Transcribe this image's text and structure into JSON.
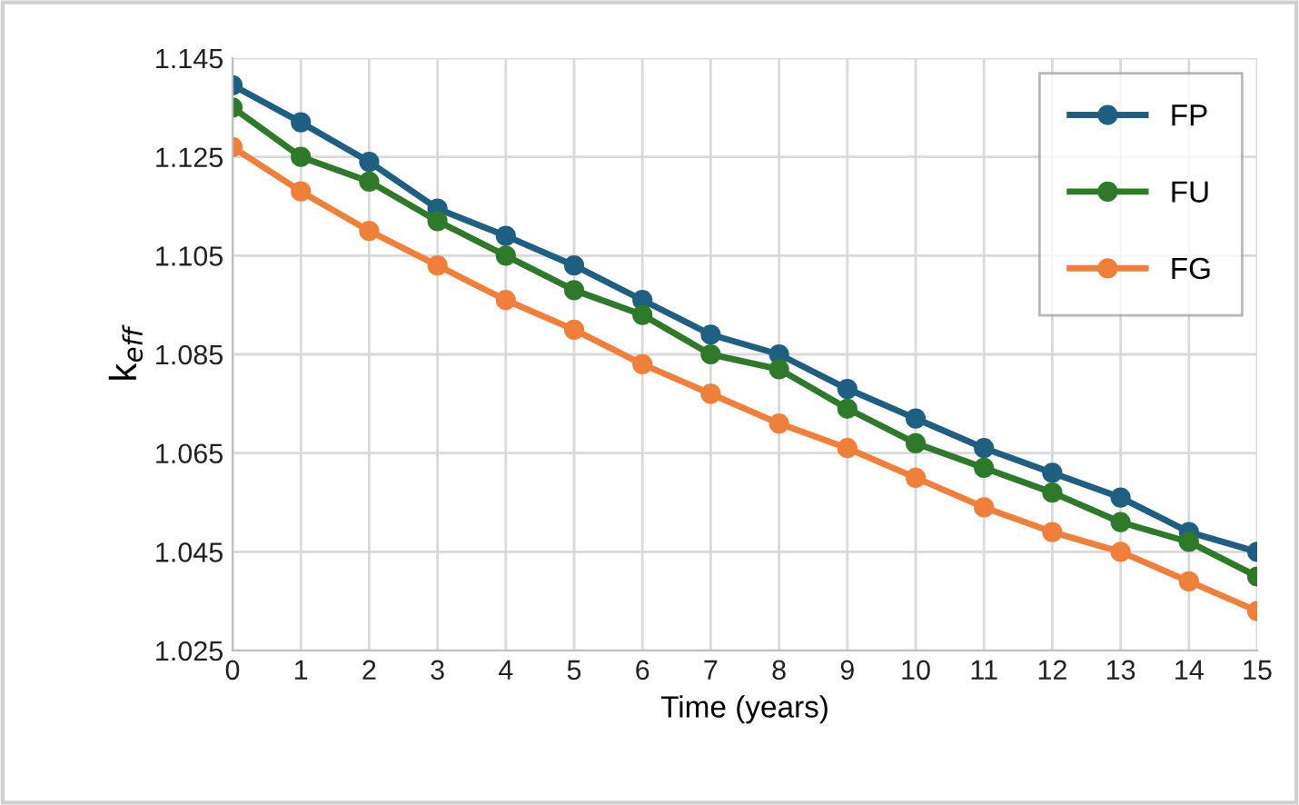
{
  "chart_data": {
    "type": "line",
    "xlabel": "Time (years)",
    "ylabel": "k$_{eff}$",
    "x": [
      0,
      1,
      2,
      3,
      4,
      5,
      6,
      7,
      8,
      9,
      10,
      11,
      12,
      13,
      14,
      15
    ],
    "series": [
      {
        "name": "FP",
        "color": "#1f5f82",
        "values": [
          1.1395,
          1.132,
          1.124,
          1.1145,
          1.109,
          1.103,
          1.096,
          1.089,
          1.085,
          1.078,
          1.072,
          1.066,
          1.061,
          1.056,
          1.049,
          1.045
        ]
      },
      {
        "name": "FU",
        "color": "#2e7a2a",
        "values": [
          1.135,
          1.125,
          1.12,
          1.112,
          1.105,
          1.098,
          1.093,
          1.085,
          1.082,
          1.074,
          1.067,
          1.062,
          1.057,
          1.051,
          1.047,
          1.04
        ]
      },
      {
        "name": "FG",
        "color": "#f07f3c",
        "values": [
          1.127,
          1.118,
          1.11,
          1.103,
          1.096,
          1.09,
          1.083,
          1.077,
          1.071,
          1.066,
          1.06,
          1.054,
          1.049,
          1.045,
          1.039,
          1.033
        ]
      }
    ],
    "xlim": [
      0,
      15
    ],
    "xticks": [
      0,
      1,
      2,
      3,
      4,
      5,
      6,
      7,
      8,
      9,
      10,
      11,
      12,
      13,
      14,
      15
    ],
    "ylim": [
      1.025,
      1.145
    ],
    "yticks": [
      {
        "value": 1.025,
        "label": "1.025"
      },
      {
        "value": 1.045,
        "label": "1.045"
      },
      {
        "value": 1.065,
        "label": "1.065"
      },
      {
        "value": 1.085,
        "label": "1.085"
      },
      {
        "value": 1.105,
        "label": "1.105"
      },
      {
        "value": 1.125,
        "label": "1.125"
      },
      {
        "value": 1.145,
        "label": "1.145"
      }
    ],
    "grid": true,
    "legend": "top right",
    "marker": "circle",
    "line_style": "solid"
  }
}
